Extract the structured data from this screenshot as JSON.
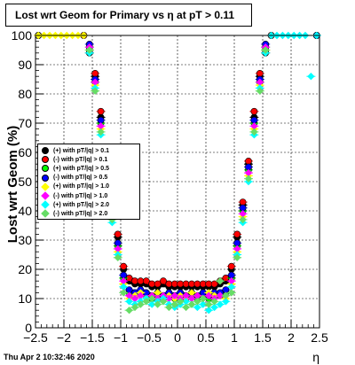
{
  "chart_data": {
    "type": "scatter",
    "title": "Lost wrt Geom for Primary vs   η at pT > 0.11",
    "xlabel": "η",
    "ylabel": "Lost wrt Geom (%)",
    "xlim": [
      -2.5,
      2.5
    ],
    "ylim": [
      0,
      100
    ],
    "xticks": [
      -2.5,
      -2,
      -1.5,
      -1,
      -0.5,
      0,
      0.5,
      1,
      1.5,
      2,
      2.5
    ],
    "xtick_labels": [
      "−2.5",
      "−2",
      "−1.5",
      "−1",
      "−0.5",
      "0",
      "0.5",
      "1",
      "1.5",
      "2",
      "2.5"
    ],
    "yticks": [
      0,
      10,
      20,
      30,
      40,
      50,
      60,
      70,
      80,
      90,
      100
    ],
    "grid": true,
    "legend_position": "middle-left",
    "series": [
      {
        "name": "(+) with pT/|q| > 0.1",
        "color": "#000000",
        "x": [
          -2.45,
          -1.65,
          -1.55,
          -1.45,
          -1.35,
          -1.25,
          -1.15,
          -1.05,
          -0.95,
          -0.85,
          -0.75,
          -0.65,
          -0.55,
          -0.45,
          -0.35,
          -0.25,
          -0.15,
          -0.05,
          0.05,
          0.15,
          0.25,
          0.35,
          0.45,
          0.55,
          0.65,
          0.75,
          0.85,
          0.95,
          1.05,
          1.15,
          1.25,
          1.35,
          1.45,
          1.55,
          1.65,
          2.45
        ],
        "y": [
          100,
          100,
          94,
          86,
          72,
          56,
          42,
          31,
          20,
          16,
          15,
          15,
          15,
          14,
          14,
          15,
          14,
          14,
          14,
          14,
          14,
          14,
          14,
          14,
          14,
          15,
          16,
          20,
          31,
          42,
          56,
          72,
          86,
          94,
          100,
          100
        ]
      },
      {
        "name": "(-) with pT/|q| > 0.1",
        "color": "#ff0000",
        "x": [
          -2.45,
          -1.65,
          -1.55,
          -1.45,
          -1.35,
          -1.25,
          -1.15,
          -1.05,
          -0.95,
          -0.85,
          -0.75,
          -0.65,
          -0.55,
          -0.45,
          -0.35,
          -0.25,
          -0.15,
          -0.05,
          0.05,
          0.15,
          0.25,
          0.35,
          0.45,
          0.55,
          0.65,
          0.75,
          0.85,
          0.95,
          1.05,
          1.15,
          1.25,
          1.35,
          1.45,
          1.55,
          1.65,
          2.45
        ],
        "y": [
          100,
          100,
          95,
          87,
          74,
          57,
          43,
          32,
          21,
          17,
          16,
          16,
          16,
          15,
          15,
          16,
          15,
          15,
          15,
          15,
          15,
          15,
          15,
          15,
          15,
          16,
          17,
          21,
          32,
          43,
          57,
          74,
          87,
          95,
          100,
          100
        ]
      },
      {
        "name": "(+) with pT/|q| > 0.5",
        "color": "#00ff00",
        "x": [
          -2.45,
          -1.55,
          -1.45,
          -1.35,
          -1.25,
          -1.15,
          -1.05,
          -0.95,
          -0.85,
          -0.75,
          -0.65,
          -0.55,
          -0.45,
          -0.35,
          -0.25,
          -0.15,
          -0.05,
          0.05,
          0.15,
          0.25,
          0.35,
          0.45,
          0.55,
          0.65,
          0.75,
          0.85,
          0.95,
          1.05,
          1.15,
          1.25,
          1.35,
          1.45,
          1.55,
          2.45
        ],
        "y": [
          100,
          96,
          84,
          70,
          54,
          40,
          28,
          17,
          12,
          11,
          12,
          11,
          10,
          11,
          10,
          11,
          10,
          11,
          10,
          11,
          10,
          11,
          10,
          11,
          11,
          12,
          17,
          28,
          40,
          54,
          70,
          84,
          96,
          100
        ]
      },
      {
        "name": "(-) with pT/|q| > 0.5",
        "color": "#0000ff",
        "x": [
          -2.45,
          -1.55,
          -1.45,
          -1.35,
          -1.25,
          -1.15,
          -1.05,
          -0.95,
          -0.85,
          -0.75,
          -0.65,
          -0.55,
          -0.45,
          -0.35,
          -0.25,
          -0.15,
          -0.05,
          0.05,
          0.15,
          0.25,
          0.35,
          0.45,
          0.55,
          0.65,
          0.75,
          0.85,
          0.95,
          1.05,
          1.15,
          1.25,
          1.35,
          1.45,
          1.55,
          2.45
        ],
        "y": [
          100,
          97,
          85,
          71,
          55,
          41,
          29,
          18,
          13,
          12,
          13,
          12,
          11,
          12,
          11,
          12,
          11,
          12,
          11,
          12,
          11,
          12,
          11,
          12,
          12,
          13,
          18,
          29,
          41,
          55,
          71,
          85,
          97,
          100
        ]
      },
      {
        "name": "(+) with pT/|q| > 1.0",
        "color": "#ffff00",
        "x": [
          -2.45,
          -2.35,
          -2.25,
          -2.15,
          -2.05,
          -1.95,
          -1.85,
          -1.75,
          -1.65,
          -1.55,
          -1.45,
          -1.35,
          -1.25,
          -1.15,
          -1.05,
          -0.95,
          -0.85,
          -0.75,
          -0.65,
          -0.55,
          -0.45,
          -0.35,
          -0.25,
          -0.15,
          -0.05,
          0.05,
          0.15,
          0.25,
          0.35,
          0.45,
          0.55,
          0.65,
          0.75,
          0.85,
          0.95,
          1.05,
          1.15,
          1.25,
          1.35,
          1.45,
          1.55
        ],
        "y": [
          100,
          100,
          100,
          100,
          100,
          100,
          100,
          100,
          100,
          95,
          83,
          68,
          52,
          38,
          26,
          15,
          10,
          11,
          12,
          10,
          11,
          12,
          10,
          11,
          10,
          11,
          10,
          12,
          11,
          10,
          12,
          11,
          11,
          10,
          15,
          26,
          38,
          52,
          68,
          83,
          95
        ]
      },
      {
        "name": "(-) with pT/|q| > 1.0",
        "color": "#ff00ff",
        "x": [
          -1.55,
          -1.45,
          -1.35,
          -1.25,
          -1.15,
          -1.05,
          -0.95,
          -0.85,
          -0.75,
          -0.65,
          -0.55,
          -0.45,
          -0.35,
          -0.25,
          -0.15,
          -0.05,
          0.05,
          0.15,
          0.25,
          0.35,
          0.45,
          0.55,
          0.65,
          0.75,
          0.85,
          0.95,
          1.05,
          1.15,
          1.25,
          1.35,
          1.45,
          1.55
        ],
        "y": [
          96,
          84,
          69,
          53,
          39,
          27,
          16,
          11,
          10,
          11,
          10,
          11,
          10,
          11,
          10,
          11,
          10,
          11,
          10,
          11,
          10,
          11,
          10,
          11,
          11,
          16,
          27,
          39,
          53,
          69,
          84,
          96
        ]
      },
      {
        "name": "(+) with pT/|q| > 2.0",
        "color": "#00ffff",
        "x": [
          -1.55,
          -1.45,
          -1.35,
          -1.25,
          -1.15,
          -1.05,
          -0.95,
          -0.85,
          -0.75,
          -0.65,
          -0.55,
          -0.45,
          -0.35,
          -0.25,
          -0.15,
          -0.05,
          0.05,
          0.15,
          0.25,
          0.35,
          0.45,
          0.55,
          0.65,
          0.75,
          0.85,
          0.95,
          1.05,
          1.15,
          1.25,
          1.35,
          1.45,
          1.55,
          1.65,
          1.75,
          1.85,
          1.95,
          2.05,
          2.15,
          2.25,
          2.35,
          2.45
        ],
        "y": [
          94,
          82,
          66,
          50,
          36,
          25,
          14,
          9,
          8,
          9,
          10,
          8,
          9,
          10,
          8,
          7,
          8,
          9,
          8,
          7,
          8,
          6,
          7,
          8,
          9,
          14,
          25,
          36,
          50,
          66,
          82,
          94,
          100,
          100,
          100,
          100,
          100,
          100,
          100,
          86,
          100
        ]
      },
      {
        "name": "(-) with pT/|q| > 2.0",
        "color": "#66dd66",
        "x": [
          -1.55,
          -1.45,
          -1.35,
          -1.25,
          -1.15,
          -1.05,
          -0.95,
          -0.85,
          -0.75,
          -0.65,
          -0.55,
          -0.45,
          -0.35,
          -0.25,
          -0.15,
          -0.05,
          0.05,
          0.15,
          0.25,
          0.35,
          0.45,
          0.55,
          0.65,
          0.75,
          0.85,
          0.95,
          1.05,
          1.15,
          1.25,
          1.35,
          1.45,
          1.55
        ],
        "y": [
          95,
          81,
          67,
          51,
          37,
          24,
          12,
          6,
          7,
          8,
          9,
          10,
          8,
          9,
          7,
          8,
          9,
          7,
          8,
          9,
          10,
          8,
          9,
          16,
          11,
          12,
          24,
          37,
          51,
          67,
          81,
          95
        ]
      }
    ]
  },
  "footer_text": "Thu Apr  2 10:32:46 2020"
}
